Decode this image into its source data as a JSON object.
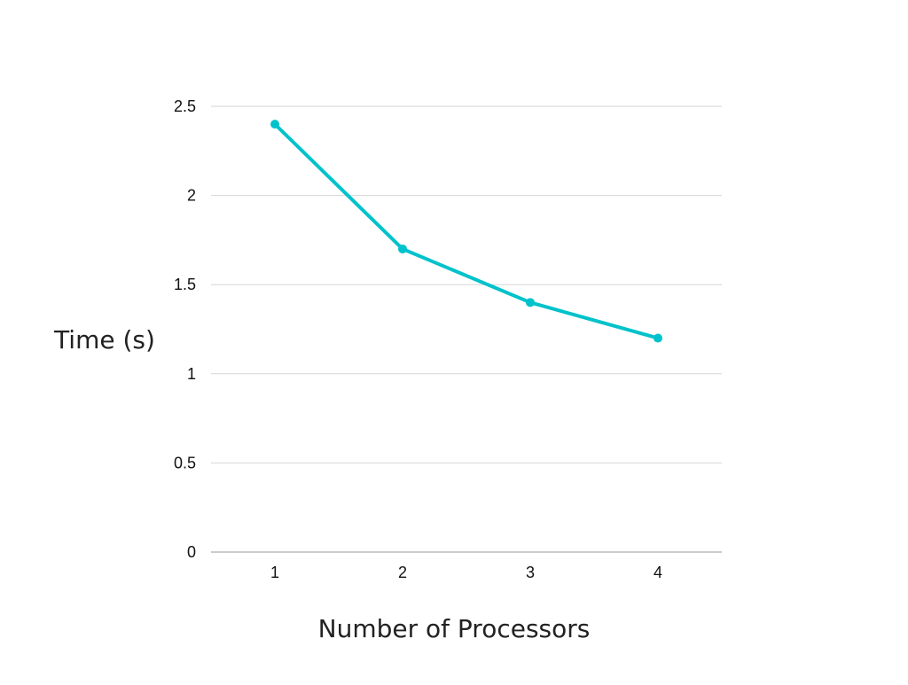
{
  "chart_data": {
    "type": "line",
    "title": "",
    "xlabel": "Number of Processors",
    "ylabel": "Time (s)",
    "categories": [
      "1",
      "2",
      "3",
      "4"
    ],
    "series": [
      {
        "values": [
          2.4,
          1.7,
          1.4,
          1.2
        ],
        "color": "#00c2cb"
      }
    ],
    "ylim": [
      0,
      2.5
    ],
    "yticks": [
      0,
      0.5,
      1,
      1.5,
      2,
      2.5
    ],
    "ytick_labels": [
      "0",
      "0.5",
      "1",
      "1.5",
      "2",
      "2.5"
    ],
    "grid": true,
    "legend": "none"
  }
}
